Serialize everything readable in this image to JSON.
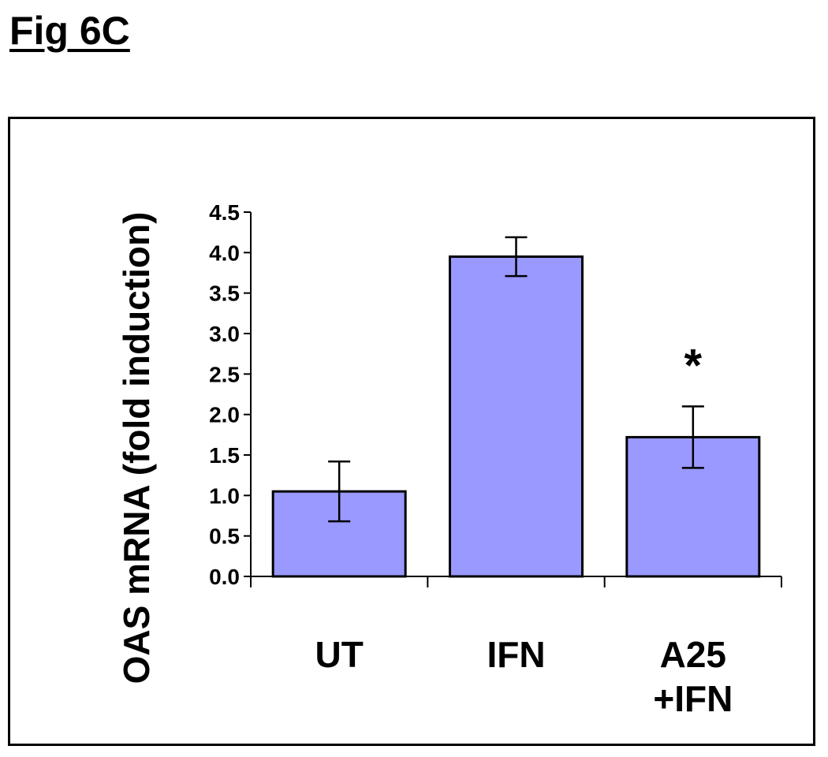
{
  "figure_label": "Fig 6C",
  "colors": {
    "bar_fill": "#9999ff",
    "bar_stroke": "#000000"
  },
  "chart_data": {
    "type": "bar",
    "title": "",
    "xlabel": "",
    "ylabel": "OAS mRNA (fold induction)",
    "ylim": [
      0,
      4.5
    ],
    "yticks": [
      "0.0",
      "0.5",
      "1.0",
      "1.5",
      "2.0",
      "2.5",
      "3.0",
      "3.5",
      "4.0",
      "4.5"
    ],
    "grid": false,
    "categories": [
      [
        "UT"
      ],
      [
        "IFN"
      ],
      [
        "A25",
        "+IFN"
      ]
    ],
    "values": [
      1.05,
      3.95,
      1.72
    ],
    "errors": [
      0.37,
      0.24,
      0.38
    ],
    "annotations": [
      {
        "category_index": 2,
        "text": "*"
      }
    ]
  }
}
